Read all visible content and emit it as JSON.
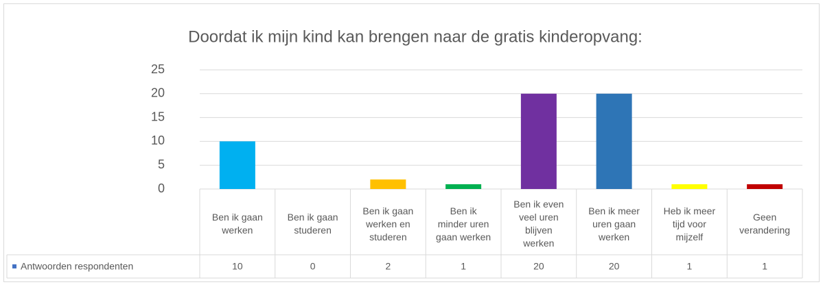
{
  "chart_data": {
    "type": "bar",
    "title": "Doordat ik mijn kind kan brengen naar de gratis kinderopvang:",
    "categories": [
      "Ben ik gaan werken",
      "Ben ik gaan studeren",
      "Ben ik gaan werken en studeren",
      "Ben ik minder uren gaan werken",
      "Ben ik even veel uren blijven werken",
      "Ben ik meer uren gaan werken",
      "Heb ik meer tijd voor mijzelf",
      "Geen verandering"
    ],
    "series": [
      {
        "name": "Antwoorden respondenten",
        "color": "#4472c4",
        "values": [
          10,
          0,
          2,
          1,
          20,
          20,
          1,
          1
        ]
      }
    ],
    "colors": [
      "#00b0f0",
      "#4472c4",
      "#ffc000",
      "#00b050",
      "#7030a0",
      "#2e75b6",
      "#ffff00",
      "#c00000"
    ],
    "ylim": [
      0,
      25
    ],
    "yticks": [
      0,
      5,
      10,
      15,
      20,
      25
    ],
    "grid": true
  }
}
